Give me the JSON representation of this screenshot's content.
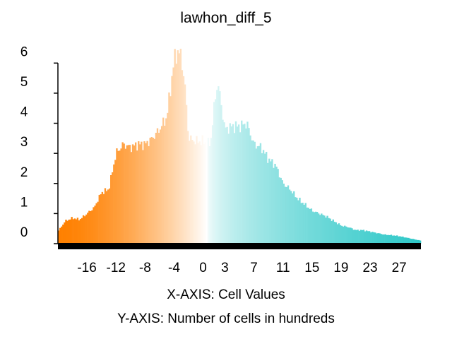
{
  "chart_data": {
    "type": "bar",
    "title": "lawhon_diff_5",
    "xlabel": "X-AXIS: Cell Values",
    "ylabel": "Y-AXIS: Number of cells in hundreds",
    "xlim": [
      -20,
      30
    ],
    "ylim": [
      0,
      6.5
    ],
    "x_ticks": [
      -16,
      -12,
      -8,
      -4,
      0,
      3,
      7,
      11,
      15,
      19,
      23,
      27
    ],
    "y_ticks": [
      0,
      1,
      2,
      3,
      4,
      5,
      6
    ],
    "grid": false,
    "legend": "none",
    "colors": {
      "low": "#FF8000",
      "mid": "#FFFFFF",
      "high": "#2EC8C8"
    },
    "x": [
      -20,
      -19,
      -18,
      -17,
      -16,
      -15,
      -14,
      -13,
      -12,
      -11,
      -10,
      -9,
      -8,
      -7,
      -6,
      -5,
      -4,
      -3.5,
      -3,
      -2.5,
      -2,
      -1,
      0,
      1,
      1.5,
      2,
      3,
      4,
      5,
      6,
      7,
      8,
      9,
      10,
      11,
      12,
      13,
      14,
      15,
      16,
      17,
      18,
      19,
      20,
      21,
      22,
      23,
      24,
      25,
      26,
      27,
      28,
      29,
      30
    ],
    "values": [
      0.4,
      0.75,
      0.85,
      0.8,
      1.0,
      1.2,
      1.7,
      1.8,
      3.0,
      3.3,
      3.2,
      3.3,
      3.3,
      3.5,
      3.8,
      4.2,
      6.1,
      6.4,
      6.2,
      5.2,
      3.5,
      3.4,
      3.4,
      3.3,
      4.5,
      5.4,
      3.8,
      3.9,
      3.9,
      4.0,
      3.3,
      3.2,
      2.8,
      2.6,
      2.0,
      1.8,
      1.5,
      1.3,
      1.1,
      1.0,
      0.9,
      0.75,
      0.6,
      0.55,
      0.45,
      0.45,
      0.4,
      0.35,
      0.3,
      0.28,
      0.25,
      0.2,
      0.15,
      0.1
    ]
  }
}
